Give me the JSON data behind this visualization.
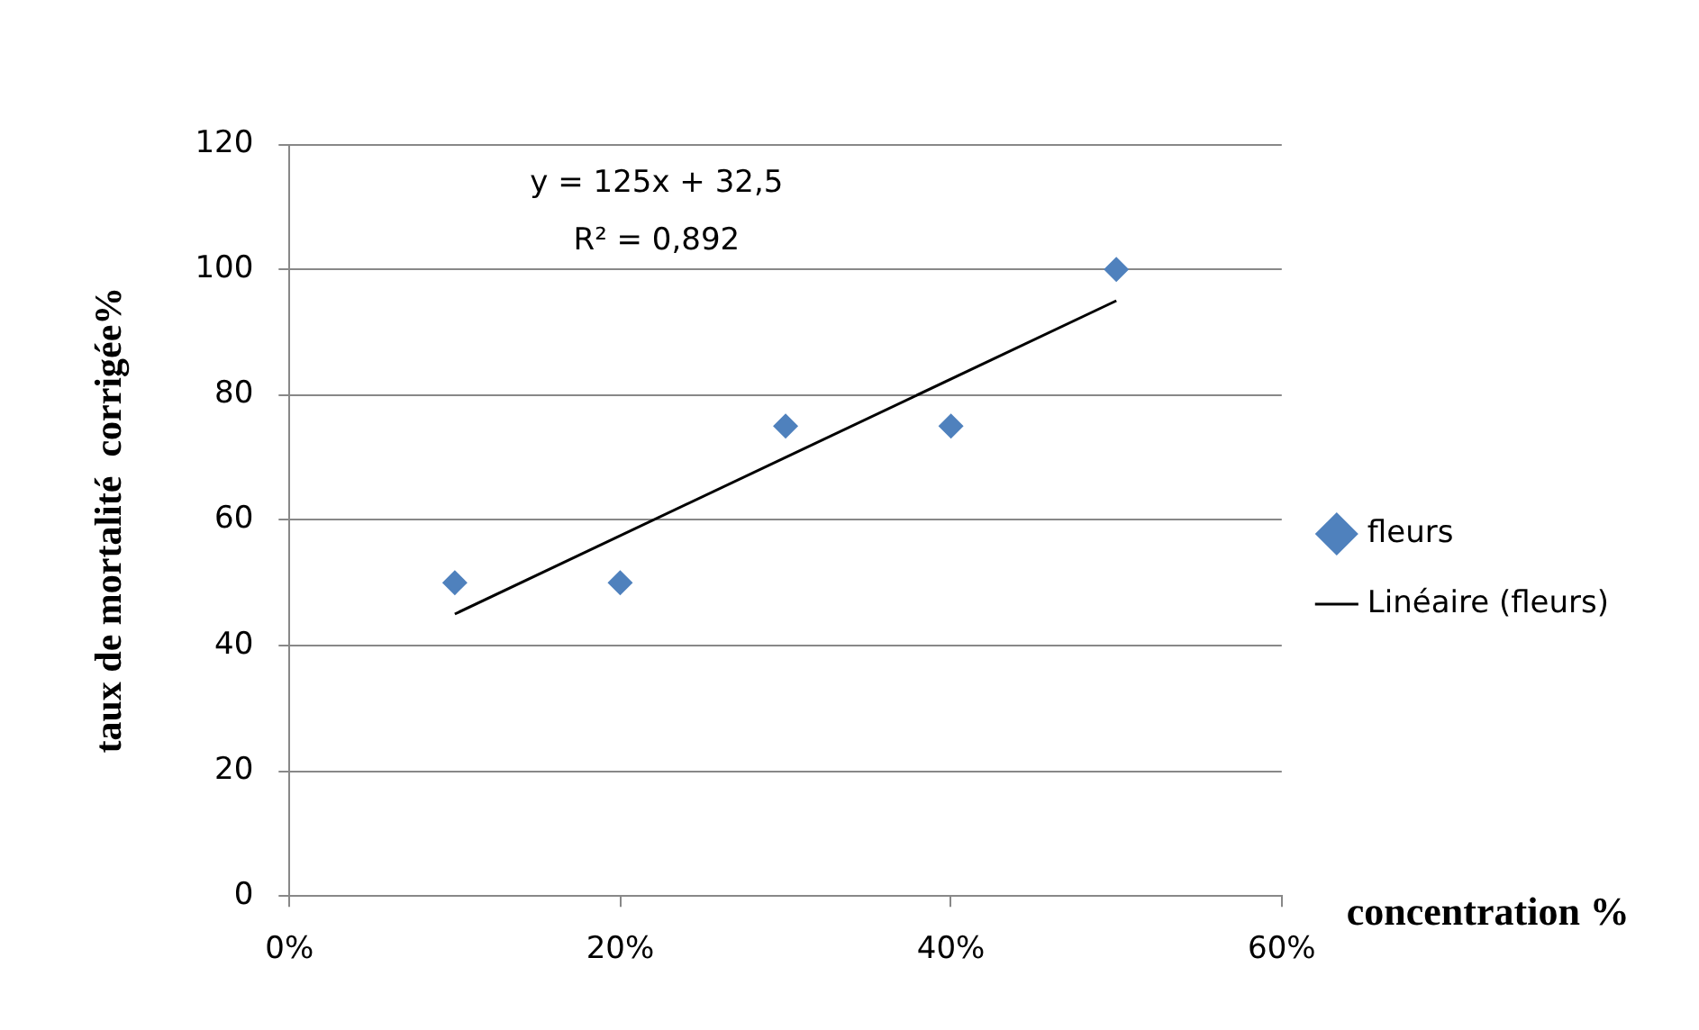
{
  "chart_data": {
    "type": "scatter",
    "xlabel": "concentration %",
    "ylabel": "taux de mortalité  corrigée%",
    "xlim": [
      0,
      60
    ],
    "xticks": [
      {
        "value": 0,
        "label": "0%"
      },
      {
        "value": 20,
        "label": "20%"
      },
      {
        "value": 40,
        "label": "40%"
      },
      {
        "value": 60,
        "label": "60%"
      }
    ],
    "ylim": [
      0,
      120
    ],
    "yticks": [
      0,
      20,
      40,
      60,
      80,
      100,
      120
    ],
    "grid": "y",
    "legend": "right",
    "annotations": [
      "y = 125x + 32,5",
      "R² = 0,892"
    ],
    "series": [
      {
        "name": "fleurs",
        "type": "scatter",
        "marker": "diamond",
        "color": "#4f81bd",
        "x": [
          10,
          20,
          30,
          40,
          50
        ],
        "values": [
          50,
          50,
          75,
          75,
          100
        ]
      },
      {
        "name": "Linéaire (fleurs)",
        "type": "line",
        "marker": "none",
        "color": "#000000",
        "x": [
          10,
          50
        ],
        "values": [
          45,
          95
        ]
      }
    ]
  }
}
